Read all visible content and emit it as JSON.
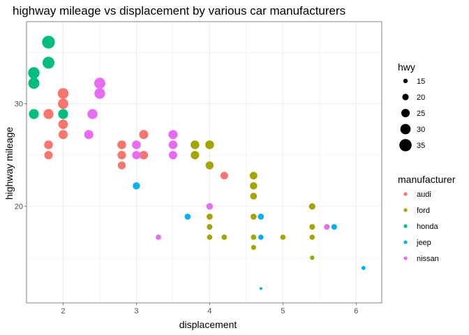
{
  "chart_data": {
    "type": "scatter",
    "title": "highway mileage vs displacement by various car manufacturers",
    "xlabel": "displacement",
    "ylabel": "highway mileage",
    "xlim": [
      1.5,
      6.35
    ],
    "ylim": [
      10.6,
      38
    ],
    "xticks": [
      2,
      3,
      4,
      5,
      6
    ],
    "yticks": [
      20,
      30
    ],
    "grid": true,
    "legend_placement": "right",
    "size_legend": {
      "title": "hwy",
      "values": [
        15,
        20,
        25,
        30,
        35
      ]
    },
    "color_legend": {
      "title": "manufacturer",
      "entries": [
        {
          "name": "audi",
          "color": "#F8766D"
        },
        {
          "name": "ford",
          "color": "#A3A500"
        },
        {
          "name": "honda",
          "color": "#00BF7D"
        },
        {
          "name": "jeep",
          "color": "#00B0F6"
        },
        {
          "name": "nissan",
          "color": "#E76BF3"
        }
      ]
    },
    "series": [
      {
        "name": "audi",
        "points": [
          {
            "x": 2.0,
            "y": 31
          },
          {
            "x": 2.0,
            "y": 30
          },
          {
            "x": 1.8,
            "y": 29
          },
          {
            "x": 1.8,
            "y": 29
          },
          {
            "x": 1.8,
            "y": 26
          },
          {
            "x": 1.8,
            "y": 25
          },
          {
            "x": 2.0,
            "y": 28
          },
          {
            "x": 2.0,
            "y": 27
          },
          {
            "x": 2.8,
            "y": 26
          },
          {
            "x": 2.8,
            "y": 25
          },
          {
            "x": 2.8,
            "y": 25
          },
          {
            "x": 2.8,
            "y": 24
          },
          {
            "x": 3.1,
            "y": 27
          },
          {
            "x": 3.1,
            "y": 25
          },
          {
            "x": 3.1,
            "y": 25
          },
          {
            "x": 3.1,
            "y": 25
          },
          {
            "x": 4.2,
            "y": 23
          }
        ]
      },
      {
        "name": "ford",
        "points": [
          {
            "x": 3.8,
            "y": 26
          },
          {
            "x": 3.8,
            "y": 25
          },
          {
            "x": 4.0,
            "y": 26
          },
          {
            "x": 4.0,
            "y": 24
          },
          {
            "x": 4.0,
            "y": 17
          },
          {
            "x": 4.0,
            "y": 19
          },
          {
            "x": 4.0,
            "y": 18
          },
          {
            "x": 4.0,
            "y": 17
          },
          {
            "x": 4.2,
            "y": 17
          },
          {
            "x": 4.2,
            "y": 17
          },
          {
            "x": 4.6,
            "y": 23
          },
          {
            "x": 4.6,
            "y": 22
          },
          {
            "x": 4.6,
            "y": 21
          },
          {
            "x": 4.6,
            "y": 19
          },
          {
            "x": 4.6,
            "y": 17
          },
          {
            "x": 4.6,
            "y": 16
          },
          {
            "x": 4.6,
            "y": 16
          },
          {
            "x": 4.6,
            "y": 17
          },
          {
            "x": 5.0,
            "y": 17
          },
          {
            "x": 5.4,
            "y": 20
          },
          {
            "x": 5.4,
            "y": 18
          },
          {
            "x": 5.4,
            "y": 17
          },
          {
            "x": 5.4,
            "y": 15
          },
          {
            "x": 4.6,
            "y": 22
          }
        ]
      },
      {
        "name": "honda",
        "points": [
          {
            "x": 1.6,
            "y": 33
          },
          {
            "x": 1.6,
            "y": 32
          },
          {
            "x": 1.6,
            "y": 32
          },
          {
            "x": 1.6,
            "y": 29
          },
          {
            "x": 1.8,
            "y": 36
          },
          {
            "x": 1.8,
            "y": 36
          },
          {
            "x": 1.8,
            "y": 34
          },
          {
            "x": 2.0,
            "y": 29
          },
          {
            "x": 1.8,
            "y": 36
          }
        ]
      },
      {
        "name": "jeep",
        "points": [
          {
            "x": 3.0,
            "y": 22
          },
          {
            "x": 3.7,
            "y": 19
          },
          {
            "x": 4.0,
            "y": 20
          },
          {
            "x": 4.7,
            "y": 19
          },
          {
            "x": 4.7,
            "y": 17
          },
          {
            "x": 5.7,
            "y": 18
          },
          {
            "x": 6.1,
            "y": 14
          },
          {
            "x": 4.7,
            "y": 12
          }
        ]
      },
      {
        "name": "nissan",
        "points": [
          {
            "x": 2.5,
            "y": 32
          },
          {
            "x": 2.5,
            "y": 31
          },
          {
            "x": 2.4,
            "y": 29
          },
          {
            "x": 2.35,
            "y": 27
          },
          {
            "x": 3.0,
            "y": 26
          },
          {
            "x": 3.0,
            "y": 25
          },
          {
            "x": 3.5,
            "y": 27
          },
          {
            "x": 3.5,
            "y": 26
          },
          {
            "x": 3.5,
            "y": 25
          },
          {
            "x": 3.3,
            "y": 17
          },
          {
            "x": 3.3,
            "y": 17
          },
          {
            "x": 4.0,
            "y": 20
          },
          {
            "x": 5.6,
            "y": 18
          }
        ]
      }
    ]
  }
}
